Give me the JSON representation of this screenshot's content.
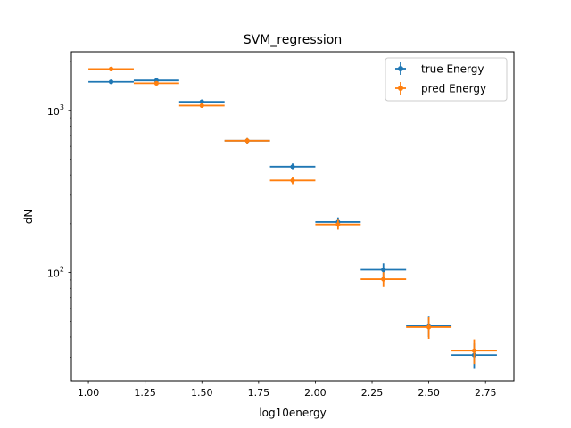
{
  "chart_data": {
    "type": "scatter",
    "title": "SVM_regression",
    "xlabel": "log10energy",
    "ylabel": "dN",
    "yscale": "log",
    "xlim": [
      0.925,
      2.875
    ],
    "ylim": [
      21.5,
      2300
    ],
    "x_ticks": [
      "1.00",
      "1.25",
      "1.50",
      "1.75",
      "2.00",
      "2.25",
      "2.50",
      "2.75"
    ],
    "x_tick_values": [
      1.0,
      1.25,
      1.5,
      1.75,
      2.0,
      2.25,
      2.5,
      2.75
    ],
    "y_major_ticks": [
      100,
      1000
    ],
    "y_tick_labels": [
      "10",
      "10"
    ],
    "y_tick_exponents": [
      "2",
      "3"
    ],
    "legend_position": "top-right",
    "grid": false,
    "series": [
      {
        "name": "true Energy",
        "color": "#1f77b4",
        "points": [
          {
            "x": 1.1,
            "xerr": 0.1,
            "y": 1500,
            "yerr": 40
          },
          {
            "x": 1.3,
            "xerr": 0.1,
            "y": 1530,
            "yerr": 40
          },
          {
            "x": 1.5,
            "xerr": 0.1,
            "y": 1130,
            "yerr": 34
          },
          {
            "x": 1.7,
            "xerr": 0.1,
            "y": 650,
            "yerr": 25
          },
          {
            "x": 1.9,
            "xerr": 0.1,
            "y": 450,
            "yerr": 21
          },
          {
            "x": 2.1,
            "xerr": 0.1,
            "y": 205,
            "yerr": 14
          },
          {
            "x": 2.3,
            "xerr": 0.1,
            "y": 104,
            "yerr": 10
          },
          {
            "x": 2.5,
            "xerr": 0.1,
            "y": 47,
            "yerr": 7
          },
          {
            "x": 2.7,
            "xerr": 0.1,
            "y": 31,
            "yerr": 5.5
          }
        ]
      },
      {
        "name": "pred Energy",
        "color": "#ff7f0e",
        "points": [
          {
            "x": 1.1,
            "xerr": 0.1,
            "y": 1800,
            "yerr": 42
          },
          {
            "x": 1.3,
            "xerr": 0.1,
            "y": 1470,
            "yerr": 38
          },
          {
            "x": 1.5,
            "xerr": 0.1,
            "y": 1070,
            "yerr": 33
          },
          {
            "x": 1.7,
            "xerr": 0.1,
            "y": 650,
            "yerr": 25
          },
          {
            "x": 1.9,
            "xerr": 0.1,
            "y": 370,
            "yerr": 19
          },
          {
            "x": 2.1,
            "xerr": 0.1,
            "y": 198,
            "yerr": 14
          },
          {
            "x": 2.3,
            "xerr": 0.1,
            "y": 91,
            "yerr": 9.5
          },
          {
            "x": 2.5,
            "xerr": 0.1,
            "y": 46,
            "yerr": 7
          },
          {
            "x": 2.7,
            "xerr": 0.1,
            "y": 33,
            "yerr": 5.7
          }
        ]
      }
    ]
  }
}
